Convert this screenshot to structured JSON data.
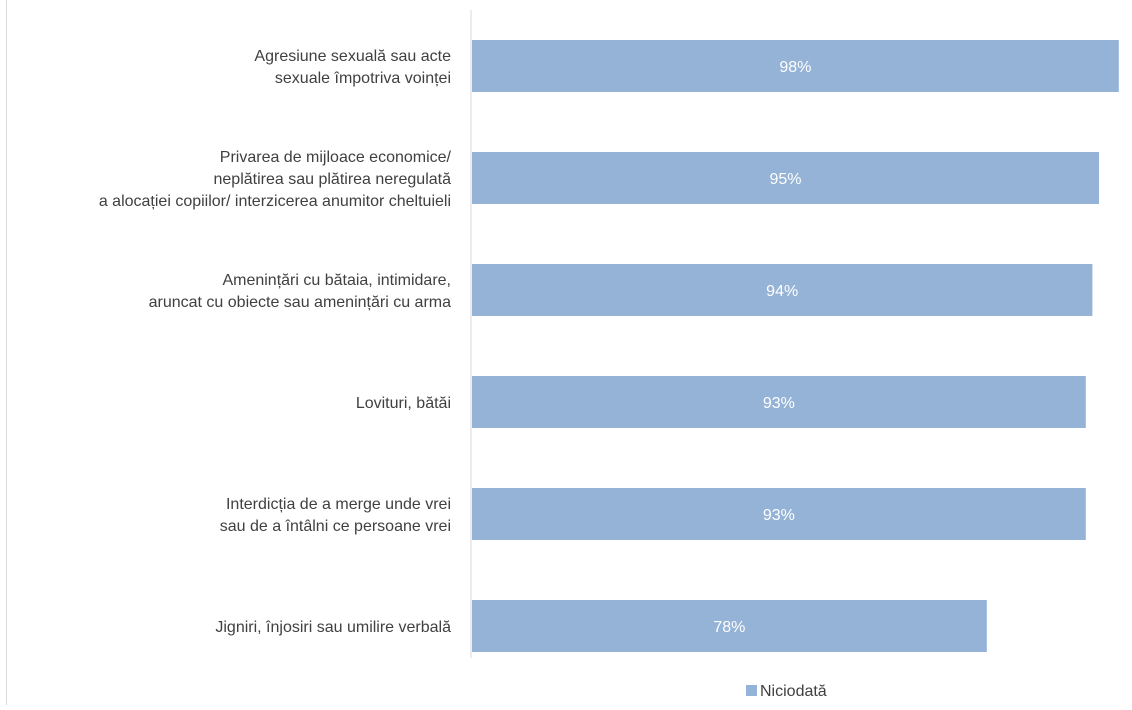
{
  "chart_data": {
    "type": "bar",
    "orientation": "horizontal",
    "categories": [
      [
        "Agresiune sexuală sau acte",
        "sexuale împotriva voinței"
      ],
      [
        "Privarea de mijloace economice/",
        "neplătirea sau plătirea neregulată",
        "a alocației copiilor/ interzicerea anumitor cheltuieli"
      ],
      [
        "Amenințări cu bătaia, intimidare,",
        "aruncat cu obiecte sau amenințări cu arma"
      ],
      [
        "Lovituri, bătăi"
      ],
      [
        "Interdicția de a merge unde vrei",
        "sau de a întâlni ce persoane vrei"
      ],
      [
        "Jigniri, înjosiri sau umilire verbală"
      ]
    ],
    "series": [
      {
        "name": "Niciodată",
        "values": [
          98,
          95,
          94,
          93,
          93,
          78
        ],
        "labels": [
          "98%",
          "95%",
          "94%",
          "93%",
          "93%",
          "78%"
        ],
        "color": "#95b3d7"
      }
    ],
    "xlim": [
      0,
      100
    ],
    "grid": false,
    "legend": "bottom",
    "title": "",
    "xlabel": "",
    "ylabel": ""
  }
}
